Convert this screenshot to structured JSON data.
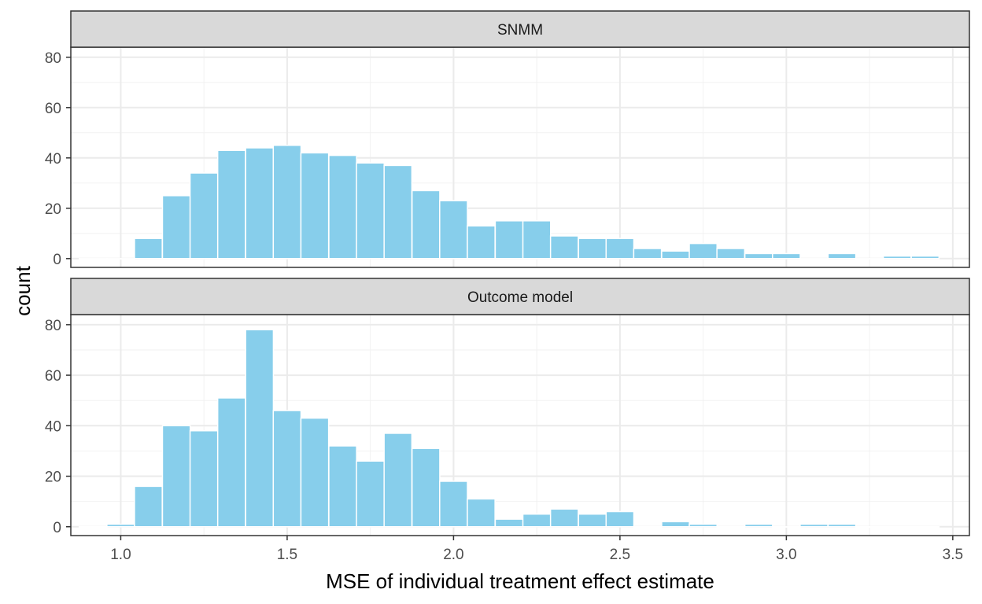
{
  "chart_data": {
    "type": "bar",
    "xlabel": "MSE of individual treatment effect estimate",
    "ylabel": "count",
    "xlim": [
      0.85,
      3.55
    ],
    "ylim": [
      -3.5,
      84
    ],
    "x_ticks": [
      1.0,
      1.5,
      2.0,
      2.5,
      3.0,
      3.5
    ],
    "x_tick_labels": [
      "1.0",
      "1.5",
      "2.0",
      "2.5",
      "3.0",
      "3.5"
    ],
    "y_ticks": [
      0,
      20,
      40,
      60,
      80
    ],
    "y_tick_labels": [
      "0",
      "20",
      "40",
      "60",
      "80"
    ],
    "bin_width": 0.0833,
    "grid": true,
    "bar_color": "#87CEEB",
    "panel_border_color": "#333333",
    "strip_color": "#D9D9D9",
    "bin_centers": [
      0.917,
      1.0,
      1.083,
      1.167,
      1.25,
      1.333,
      1.417,
      1.5,
      1.583,
      1.667,
      1.75,
      1.833,
      1.917,
      2.0,
      2.083,
      2.167,
      2.25,
      2.333,
      2.417,
      2.5,
      2.583,
      2.667,
      2.75,
      2.833,
      2.917,
      3.0,
      3.083,
      3.167,
      3.25,
      3.333,
      3.417
    ],
    "panels": [
      {
        "strip": "SNMM",
        "values": [
          0,
          0,
          8,
          25,
          34,
          43,
          44,
          45,
          42,
          41,
          38,
          37,
          27,
          23,
          13,
          15,
          15,
          9,
          8,
          8,
          4,
          3,
          6,
          4,
          2,
          2,
          0,
          2,
          0,
          1,
          1
        ]
      },
      {
        "strip": "Outcome model",
        "values": [
          0,
          1,
          16,
          40,
          38,
          51,
          78,
          46,
          43,
          32,
          26,
          37,
          31,
          18,
          11,
          3,
          5,
          7,
          5,
          6,
          0,
          2,
          1,
          0,
          1,
          0,
          1,
          1,
          0,
          0,
          0
        ]
      }
    ]
  }
}
